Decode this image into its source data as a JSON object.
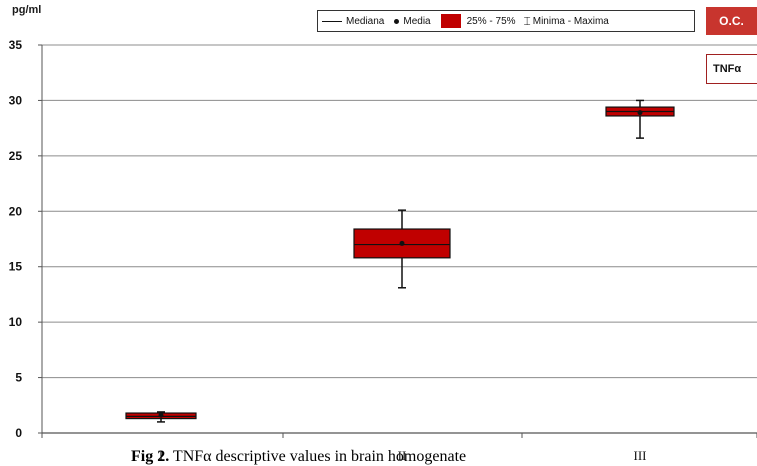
{
  "chart_data": {
    "type": "box",
    "ylabel": "pg/ml",
    "ylim": [
      0,
      35
    ],
    "yticks": [
      0,
      5,
      10,
      15,
      20,
      25,
      30,
      35
    ],
    "categories": [
      "I",
      "II",
      "III"
    ],
    "boxes": [
      {
        "category": "I",
        "min": 1.0,
        "q1": 1.3,
        "median": 1.5,
        "q3": 1.8,
        "max": 1.9,
        "mean": 1.6
      },
      {
        "category": "II",
        "min": 13.1,
        "q1": 15.8,
        "median": 17.0,
        "q3": 18.4,
        "max": 20.1,
        "mean": 17.1
      },
      {
        "category": "III",
        "min": 26.6,
        "q1": 28.6,
        "median": 29.0,
        "q3": 29.4,
        "max": 30.0,
        "mean": 28.9
      }
    ],
    "legend": {
      "median": "Mediana",
      "mean": "Media",
      "iqr": "25% - 75%",
      "range": "Minima - Maxima"
    },
    "box_color": "#c00000",
    "grid": true
  },
  "badge": "O.C.",
  "panel_label": "TNFα",
  "caption": {
    "prefix": "Fig 2.",
    "text": " TNFα descriptive values in brain homogenate"
  }
}
